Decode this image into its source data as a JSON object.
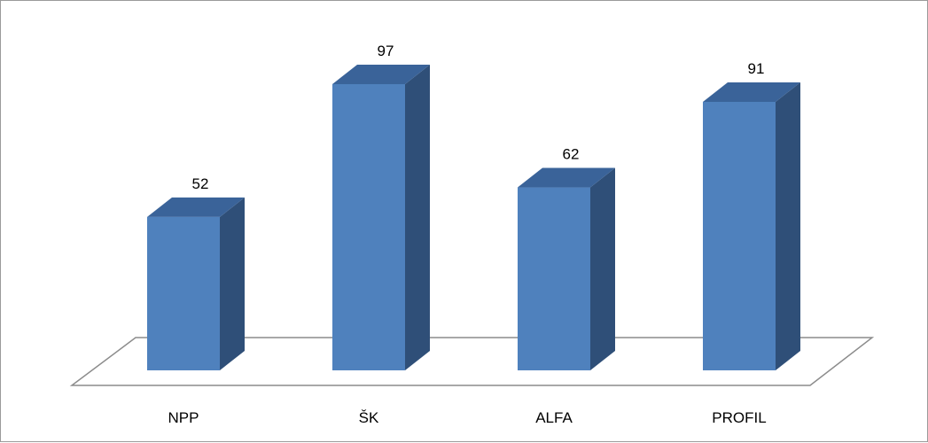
{
  "chart_data": {
    "type": "bar",
    "style": "3d-column",
    "categories": [
      "NPP",
      "ŠK",
      "ALFA",
      "PROFIL"
    ],
    "values": [
      52,
      97,
      62,
      91
    ],
    "data_labels": [
      "52",
      "97",
      "62",
      "91"
    ],
    "ylim": [
      0,
      100
    ],
    "grid": false,
    "legend": "none",
    "colors": {
      "front": "#4F81BD",
      "side": "#2F4F78",
      "top": "#3A6399",
      "floor_stroke": "#8C8C8C"
    }
  }
}
